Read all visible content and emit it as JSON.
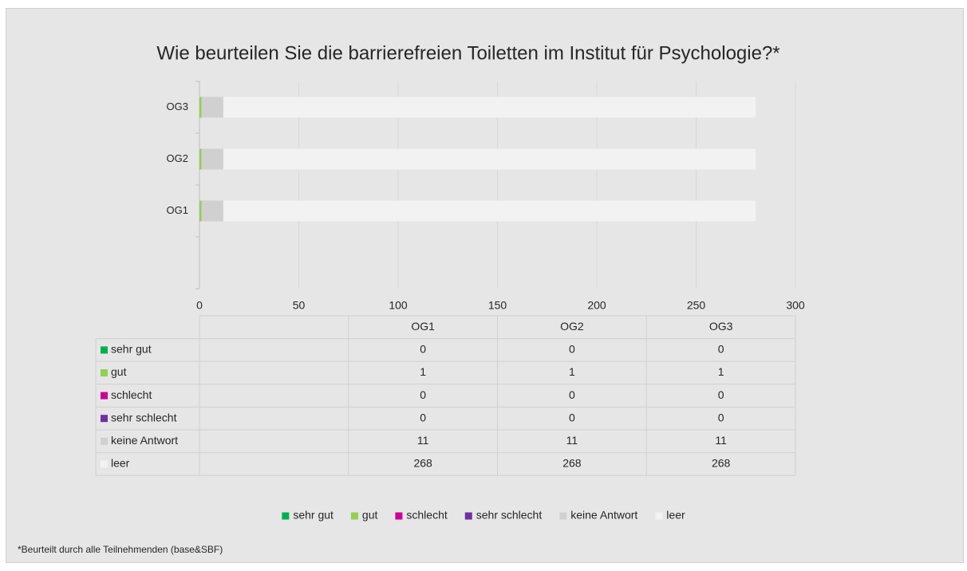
{
  "chart_data": {
    "type": "bar",
    "orientation": "horizontal",
    "stacked": true,
    "title": "Wie beurteilen Sie die barrierefreien Toiletten im Institut für Psychologie?*",
    "categories": [
      null,
      "OG1",
      "OG2",
      "OG3"
    ],
    "series": [
      {
        "name": "sehr gut",
        "color": "#00b050",
        "values": [
          null,
          0,
          0,
          0
        ]
      },
      {
        "name": "gut",
        "color": "#92d050",
        "values": [
          null,
          1,
          1,
          1
        ]
      },
      {
        "name": "schlecht",
        "color": "#cc0099",
        "values": [
          null,
          0,
          0,
          0
        ]
      },
      {
        "name": "sehr schlecht",
        "color": "#7030a0",
        "values": [
          null,
          0,
          0,
          0
        ]
      },
      {
        "name": "keine Antwort",
        "color": "#d0d0d0",
        "values": [
          null,
          11,
          11,
          11
        ]
      },
      {
        "name": "leer",
        "color": "#f2f2f2",
        "values": [
          null,
          268,
          268,
          268
        ]
      }
    ],
    "xlim": [
      0,
      300
    ],
    "xticks": [
      0,
      50,
      100,
      150,
      200,
      250,
      300
    ],
    "grid": true,
    "data_table": true,
    "legend": "bottom",
    "footnote": "*Beurteilt durch alle Teilnehmenden (base&SBF)"
  }
}
